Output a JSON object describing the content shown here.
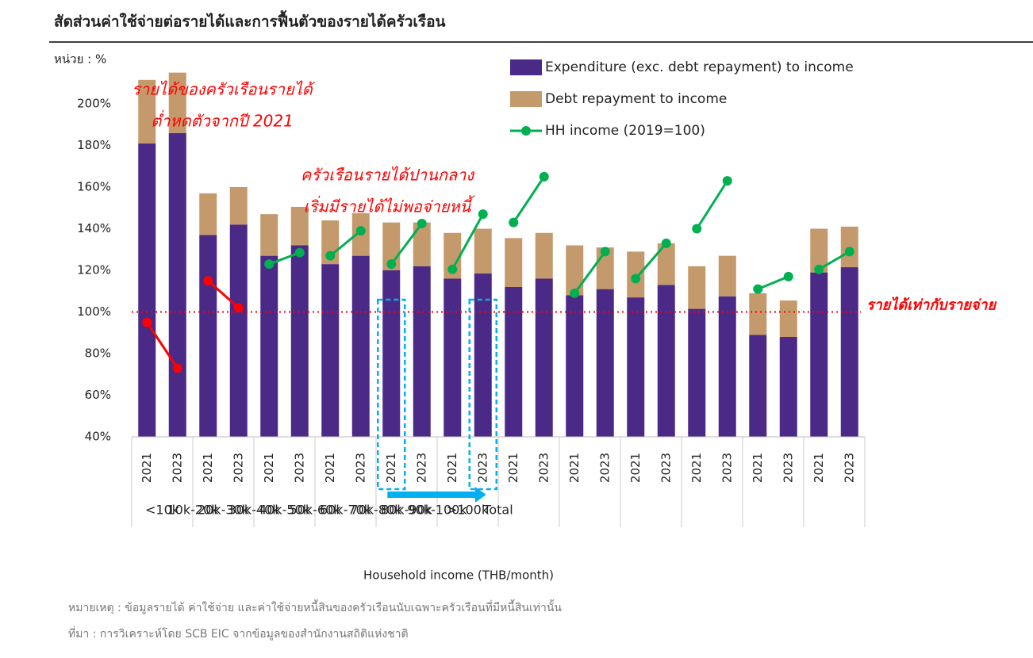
{
  "chart_data": {
    "type": "bar",
    "title": "สัดส่วนค่าใช้จ่ายต่อรายได้และการฟื้นตัวของรายได้ครัวเรือน",
    "unit_label": "หน่วย : %",
    "x_label": "Household income (THB/month)",
    "categories": [
      "2021",
      "2023",
      "2021",
      "2023",
      "2021",
      "2023",
      "2021",
      "2023",
      "2021",
      "2023",
      "2021",
      "2023",
      "2021",
      "2023",
      "2021",
      "2023",
      "2021",
      "2023",
      "2021",
      "2023",
      "2021",
      "2023",
      "2021",
      "2023"
    ],
    "groups": [
      "<10k",
      "10k-20k",
      "20k-30k",
      "30k-40k",
      "40k-50k",
      "50k-60k",
      "60k-70k",
      "70k-80k",
      "80k-90k",
      "90k-100k",
      ">100k",
      "Total"
    ],
    "series": [
      {
        "name": "Expenditure (exc. debt repayment) to income",
        "color": "#4b2a87",
        "stack": true,
        "values": [
          141,
          146,
          97,
          102,
          87,
          92,
          83,
          87,
          80,
          82,
          76,
          78.5,
          72,
          76,
          68,
          71,
          67,
          73,
          61.5,
          67.5,
          49,
          48,
          79,
          81.5
        ]
      },
      {
        "name": "Debt repayment to income",
        "color": "#c49a6c",
        "stack": true,
        "values": [
          30.5,
          29,
          20,
          18,
          20,
          18.5,
          21,
          20.5,
          23,
          21,
          22,
          21.5,
          23.5,
          22,
          24,
          20,
          22,
          20,
          20.5,
          19.5,
          20,
          17.5,
          21,
          19.5
        ]
      },
      {
        "name": "HH income (2019=100)",
        "type": "line",
        "color": "#00b050",
        "highlight_color": "#ff0000",
        "highlight_groups": [
          0,
          1
        ],
        "values": [
          95,
          73,
          115,
          102,
          123,
          128.5,
          127,
          139,
          123,
          142.5,
          120.5,
          147,
          143,
          165,
          109,
          129,
          116,
          133,
          140,
          163,
          111,
          117,
          120.5,
          129
        ]
      }
    ],
    "ylim": [
      40,
      210
    ],
    "yticks": [
      {
        "value": 40,
        "label": "40%"
      },
      {
        "value": 60,
        "label": "60%"
      },
      {
        "value": 80,
        "label": "80%"
      },
      {
        "value": 100,
        "label": "100%"
      },
      {
        "value": 120,
        "label": "120%"
      },
      {
        "value": 140,
        "label": "140%"
      },
      {
        "value": 160,
        "label": "160%"
      },
      {
        "value": 180,
        "label": "180%"
      },
      {
        "value": 200,
        "label": "200%"
      }
    ],
    "reference_line": {
      "value": 100,
      "color": "#ff0000",
      "label": "รายได้เท่ากับรายจ่าย"
    },
    "highlight_bars": [
      8,
      11
    ],
    "annotations": [
      {
        "lines": [
          "รายได้ของครัวเรือนรายได้",
          "ต่ำหดตัวจากปี 2021"
        ]
      },
      {
        "lines": [
          "ครัวเรือนรายได้ปานกลาง",
          "เริ่มมีรายได้ไม่พอจ่ายหนี้"
        ]
      }
    ],
    "notes": [
      "หมายเหตุ : ข้อมูลรายได้ ค่าใช้จ่าย และค่าใช้จ่ายหนี้สินของครัวเรือนนับเฉพาะครัวเรือนที่มีหนี้สินเท่านั้น",
      "ที่มา : การวิเคราะห์โดย SCB EIC จากข้อมูลของสำนักงานสถิติแห่งชาติ"
    ]
  }
}
